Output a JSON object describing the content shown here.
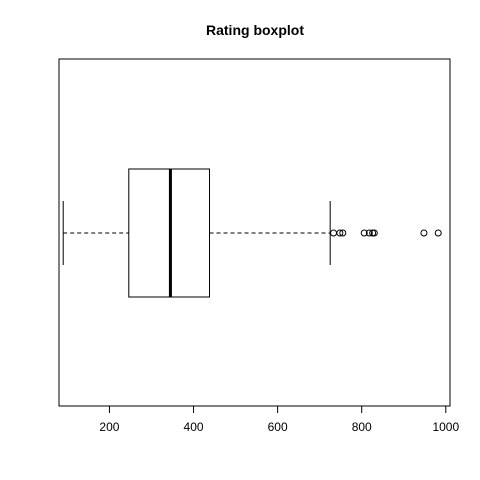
{
  "chart_data": {
    "type": "boxplot",
    "title": "Rating boxplot",
    "orientation": "horizontal",
    "xlim": [
      80,
      1010
    ],
    "x_ticks": [
      200,
      400,
      600,
      800,
      1000
    ],
    "box": {
      "whisker_low": 90,
      "q1": 246,
      "median": 345,
      "q3": 438,
      "whisker_high": 725
    },
    "outliers": [
      733,
      748,
      755,
      806,
      818,
      826,
      830,
      948,
      982
    ],
    "colors": {
      "stroke": "#000000",
      "background": "#ffffff"
    }
  }
}
